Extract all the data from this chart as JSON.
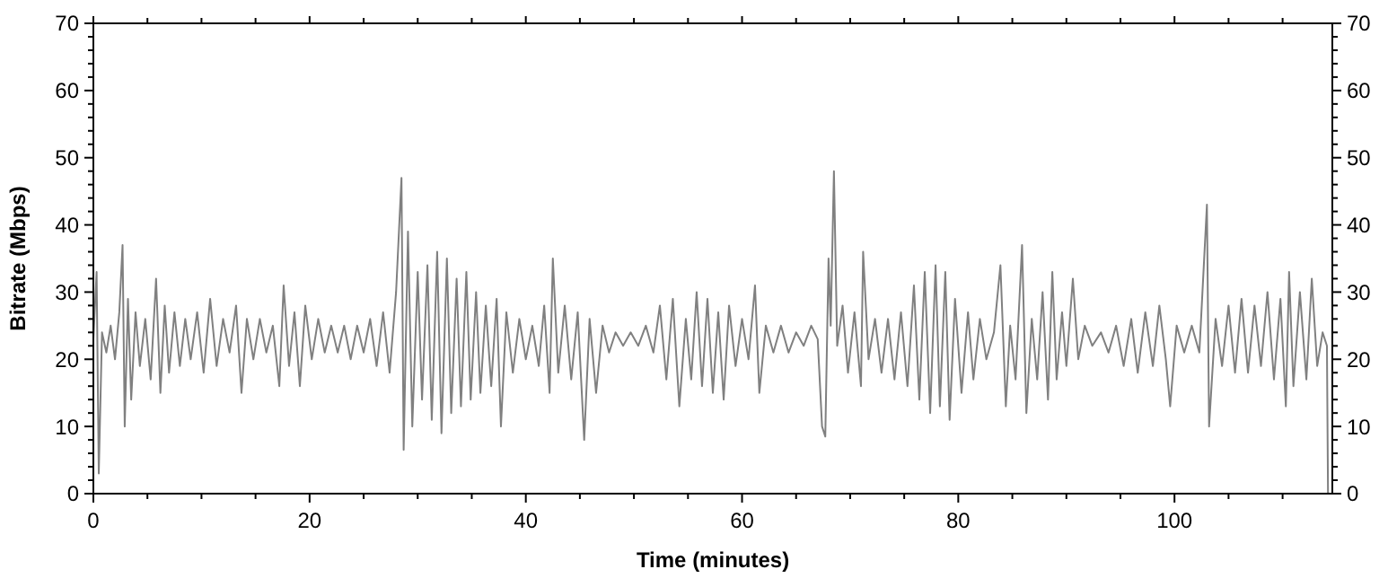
{
  "chart_data": {
    "type": "line",
    "xlabel": "Time (minutes)",
    "ylabel": "Bitrate (Mbps)",
    "xlim": [
      0,
      114.6
    ],
    "xticks": [
      0,
      {
        "value": 5,
        "label": null
      },
      {
        "value": 10,
        "label": null
      },
      {
        "value": 15,
        "label": null
      },
      20,
      {
        "value": 25,
        "label": null
      },
      {
        "value": 30,
        "label": null
      },
      {
        "value": 35,
        "label": null
      },
      40,
      {
        "value": 45,
        "label": null
      },
      {
        "value": 50,
        "label": null
      },
      {
        "value": 55,
        "label": null
      },
      60,
      {
        "value": 65,
        "label": null
      },
      {
        "value": 70,
        "label": null
      },
      {
        "value": 75,
        "label": null
      },
      80,
      {
        "value": 85,
        "label": null
      },
      {
        "value": 90,
        "label": null
      },
      {
        "value": 95,
        "label": null
      },
      100,
      {
        "value": 105,
        "label": null
      },
      {
        "value": 110,
        "label": null
      }
    ],
    "ylim": [
      0,
      70
    ],
    "yticks": [
      0,
      {
        "value": 2,
        "label": null
      },
      {
        "value": 4,
        "label": null
      },
      {
        "value": 6,
        "label": null
      },
      {
        "value": 8,
        "label": null
      },
      10,
      {
        "value": 12,
        "label": null
      },
      {
        "value": 14,
        "label": null
      },
      {
        "value": 16,
        "label": null
      },
      {
        "value": 18,
        "label": null
      },
      20,
      {
        "value": 22,
        "label": null
      },
      {
        "value": 24,
        "label": null
      },
      {
        "value": 26,
        "label": null
      },
      {
        "value": 28,
        "label": null
      },
      30,
      {
        "value": 32,
        "label": null
      },
      {
        "value": 34,
        "label": null
      },
      {
        "value": 36,
        "label": null
      },
      {
        "value": 38,
        "label": null
      },
      40,
      {
        "value": 42,
        "label": null
      },
      {
        "value": 44,
        "label": null
      },
      {
        "value": 46,
        "label": null
      },
      {
        "value": 48,
        "label": null
      },
      50,
      {
        "value": 52,
        "label": null
      },
      {
        "value": 54,
        "label": null
      },
      {
        "value": 56,
        "label": null
      },
      {
        "value": 58,
        "label": null
      },
      60,
      {
        "value": 62,
        "label": null
      },
      {
        "value": 64,
        "label": null
      },
      {
        "value": 66,
        "label": null
      },
      {
        "value": 68,
        "label": null
      },
      70
    ],
    "y2lim": [
      0,
      70
    ],
    "y2ticks": [
      0,
      {
        "value": 2,
        "label": null
      },
      {
        "value": 4,
        "label": null
      },
      {
        "value": 6,
        "label": null
      },
      {
        "value": 8,
        "label": null
      },
      10,
      {
        "value": 12,
        "label": null
      },
      {
        "value": 14,
        "label": null
      },
      {
        "value": 16,
        "label": null
      },
      {
        "value": 18,
        "label": null
      },
      20,
      {
        "value": 22,
        "label": null
      },
      {
        "value": 24,
        "label": null
      },
      {
        "value": 26,
        "label": null
      },
      {
        "value": 28,
        "label": null
      },
      30,
      {
        "value": 32,
        "label": null
      },
      {
        "value": 34,
        "label": null
      },
      {
        "value": 36,
        "label": null
      },
      {
        "value": 38,
        "label": null
      },
      40,
      {
        "value": 42,
        "label": null
      },
      {
        "value": 44,
        "label": null
      },
      {
        "value": 46,
        "label": null
      },
      {
        "value": 48,
        "label": null
      },
      50,
      {
        "value": 52,
        "label": null
      },
      {
        "value": 54,
        "label": null
      },
      {
        "value": 56,
        "label": null
      },
      {
        "value": 58,
        "label": null
      },
      60,
      {
        "value": 62,
        "label": null
      },
      {
        "value": 64,
        "label": null
      },
      {
        "value": 66,
        "label": null
      },
      {
        "value": 68,
        "label": null
      },
      70
    ],
    "grid": false,
    "marker": "none",
    "line_style": "solid",
    "x": [
      0,
      0.3,
      0.5,
      0.8,
      1.2,
      1.6,
      2,
      2.4,
      2.7,
      2.9,
      3.2,
      3.5,
      3.9,
      4.3,
      4.8,
      5.3,
      5.8,
      6.2,
      6.6,
      7,
      7.5,
      8,
      8.5,
      9,
      9.6,
      10.2,
      10.8,
      11.4,
      12,
      12.6,
      13.2,
      13.7,
      14.2,
      14.8,
      15.4,
      16,
      16.6,
      17.2,
      17.6,
      18.1,
      18.6,
      19.1,
      19.6,
      20.2,
      20.8,
      21.4,
      22,
      22.6,
      23.2,
      23.8,
      24.4,
      25,
      25.6,
      26.2,
      26.8,
      27.4,
      28,
      28.5,
      28.7,
      29.1,
      29.5,
      30,
      30.4,
      30.9,
      31.3,
      31.8,
      32.2,
      32.7,
      33.1,
      33.6,
      34,
      34.5,
      34.9,
      35.4,
      35.8,
      36.3,
      36.8,
      37.3,
      37.7,
      38.2,
      38.8,
      39.4,
      40,
      40.6,
      41.2,
      41.7,
      42.2,
      42.5,
      43,
      43.6,
      44.2,
      44.8,
      45.4,
      45.9,
      46.5,
      47.1,
      47.7,
      48.3,
      49,
      49.7,
      50.4,
      51.1,
      51.8,
      52.4,
      53,
      53.6,
      54.2,
      54.8,
      55.3,
      55.8,
      56.3,
      56.8,
      57.3,
      57.8,
      58.3,
      58.8,
      59.4,
      60,
      60.6,
      61.2,
      61.6,
      62.2,
      62.9,
      63.6,
      64.3,
      65,
      65.7,
      66.4,
      67,
      67.4,
      67.7,
      68,
      68.2,
      68.5,
      68.8,
      69.3,
      69.8,
      70.4,
      71,
      71.2,
      71.7,
      72.3,
      72.9,
      73.5,
      74.1,
      74.7,
      75.3,
      75.9,
      76.4,
      76.9,
      77.4,
      77.9,
      78.3,
      78.8,
      79.2,
      79.7,
      80.3,
      80.9,
      81.4,
      82,
      82.6,
      83.3,
      83.9,
      84.4,
      84.8,
      85.3,
      85.9,
      86.3,
      86.8,
      87.3,
      87.8,
      88.3,
      88.7,
      89.1,
      89.6,
      90,
      90.6,
      91.1,
      91.7,
      92.4,
      93.2,
      93.9,
      94.6,
      95.3,
      96,
      96.6,
      97.3,
      98,
      98.6,
      99.2,
      99.6,
      100.2,
      100.9,
      101.6,
      102.3,
      103,
      103.2,
      103.8,
      104.4,
      105,
      105.6,
      106.2,
      106.8,
      107.4,
      108,
      108.6,
      109.2,
      109.8,
      110.3,
      110.6,
      111,
      111.6,
      112.2,
      112.7,
      113.2,
      113.7,
      114.1,
      114.2
    ],
    "series": [
      {
        "color": "#808080",
        "values": [
          23,
          33,
          3,
          24,
          21,
          25,
          20,
          27,
          37,
          10,
          29,
          14,
          27,
          19,
          26,
          17,
          32,
          15,
          28,
          18,
          27,
          19,
          26,
          20,
          27,
          18,
          29,
          19,
          26,
          21,
          28,
          15,
          26,
          20,
          26,
          21,
          25,
          16,
          31,
          19,
          27,
          16,
          28,
          20,
          26,
          21,
          25,
          21,
          25,
          20,
          25,
          21,
          26,
          19,
          27,
          18,
          30,
          47,
          6.5,
          39,
          10,
          33,
          14,
          34,
          11,
          36,
          9,
          35,
          12,
          32,
          13,
          33,
          14,
          30,
          15,
          28,
          16,
          29,
          10,
          27,
          18,
          26,
          20,
          25,
          19,
          28,
          15,
          35,
          18,
          28,
          17,
          27,
          8,
          26,
          15,
          25,
          21,
          24,
          22,
          24,
          22,
          25,
          21,
          28,
          17,
          29,
          13,
          26,
          17,
          30,
          16,
          29,
          15,
          27,
          14,
          28,
          19,
          26,
          20,
          31,
          15,
          25,
          21,
          25,
          21,
          24,
          22,
          25,
          23,
          10,
          8.5,
          35,
          25,
          48,
          22,
          28,
          18,
          27,
          16,
          36,
          20,
          26,
          18,
          26,
          17,
          27,
          16,
          31,
          14,
          33,
          12,
          34,
          13,
          33,
          11,
          29,
          15,
          27,
          17,
          26,
          20,
          24,
          34,
          13,
          25,
          17,
          37,
          12,
          26,
          17,
          30,
          14,
          33,
          17,
          27,
          19,
          32,
          20,
          25,
          22,
          24,
          21,
          25,
          19,
          26,
          18,
          27,
          19,
          28,
          20,
          13,
          25,
          21,
          25,
          21,
          43,
          10,
          26,
          19,
          28,
          18,
          29,
          18,
          28,
          19,
          30,
          17,
          29,
          13,
          33,
          16,
          30,
          17,
          32,
          19,
          24,
          22,
          0
        ]
      }
    ]
  }
}
